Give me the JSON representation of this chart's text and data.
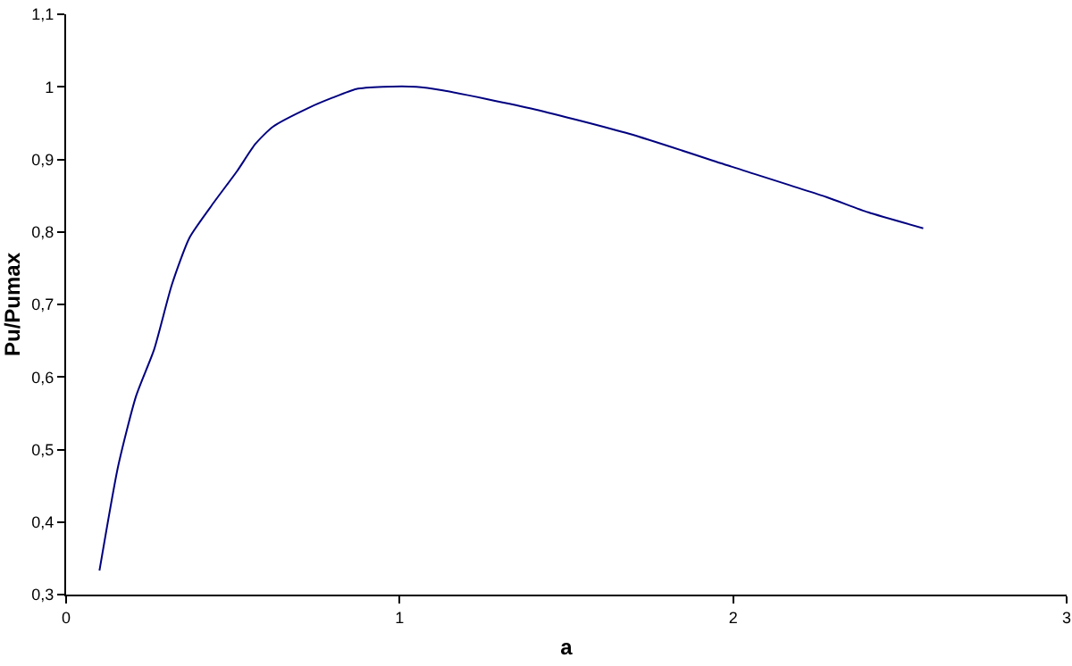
{
  "chart_data": {
    "type": "line",
    "xlabel": "a",
    "ylabel": "Pu/Pumax",
    "x": [
      0.1,
      0.156,
      0.21,
      0.264,
      0.317,
      0.37,
      0.442,
      0.513,
      0.567,
      0.62,
      0.727,
      0.799,
      0.87,
      0.95,
      1.05,
      1.13,
      1.405,
      1.69,
      1.995,
      2.28,
      2.405,
      2.57
    ],
    "series": [
      {
        "color": "#000080",
        "values": [
          0.333,
          0.477,
          0.574,
          0.638,
          0.727,
          0.792,
          0.84,
          0.884,
          0.921,
          0.945,
          0.971,
          0.985,
          0.997,
          1.0,
          1.0,
          0.995,
          0.969,
          0.935,
          0.89,
          0.848,
          0.827,
          0.805
        ]
      }
    ],
    "xlim": [
      0,
      3
    ],
    "xticks": [
      0,
      1,
      2,
      3
    ],
    "ylim": [
      0.3,
      1.1
    ],
    "yticks": [
      {
        "value": 0.3,
        "label": "0,3"
      },
      {
        "value": 0.4,
        "label": "0,4"
      },
      {
        "value": 0.5,
        "label": "0,5"
      },
      {
        "value": 0.6,
        "label": "0,6"
      },
      {
        "value": 0.7,
        "label": "0,7"
      },
      {
        "value": 0.8,
        "label": "0,8"
      },
      {
        "value": 0.9,
        "label": "0,9"
      },
      {
        "value": 1,
        "label": "1"
      },
      {
        "value": 1.1,
        "label": "1,1"
      }
    ],
    "grid": false,
    "legend": false,
    "marker": "none",
    "line_style": "solid"
  }
}
